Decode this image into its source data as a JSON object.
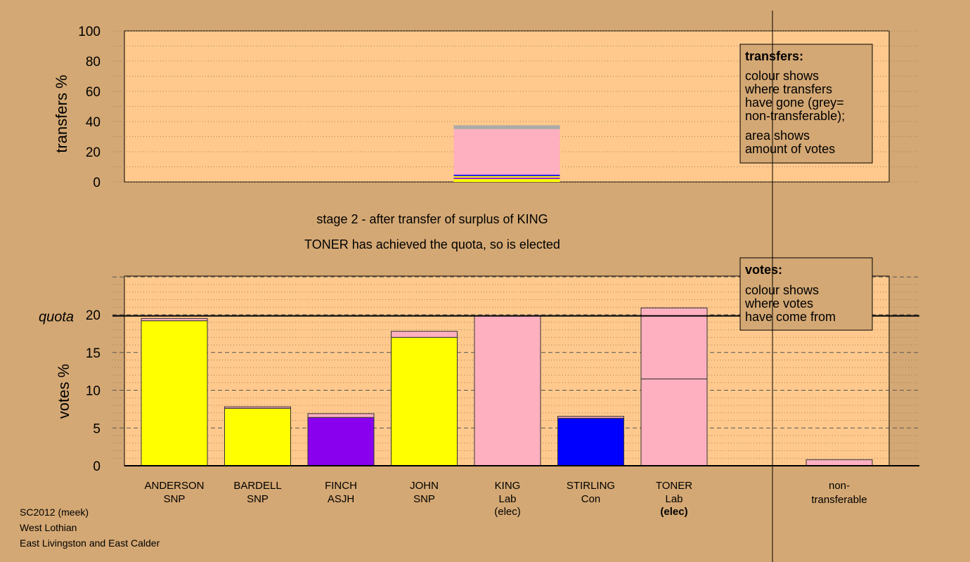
{
  "colors": {
    "background": "#d4a874",
    "plot_bg": "#ffc98d",
    "SNP": "#ffff00",
    "ASJH": "#8800ee",
    "Lab": "#ffb0c0",
    "Con": "#0000ff",
    "nontransferable": "#aaaaaa"
  },
  "caption": {
    "line1": "stage 2 - after transfer of surplus of KING",
    "line2": "TONER has achieved the quota, so is elected"
  },
  "footer": {
    "line1": "SC2012 (meek)",
    "line2": "West Lothian",
    "line3": "East Livingston and East Calder"
  },
  "transfers_legend": {
    "title": "transfers:",
    "lines": [
      "colour shows",
      "where transfers",
      "have gone (grey=",
      "non-transferable);",
      "area shows",
      "amount of votes"
    ]
  },
  "votes_legend": {
    "title": "votes:",
    "lines": [
      "colour shows",
      "where votes",
      "have come from"
    ]
  },
  "chart_data": [
    {
      "type": "bar",
      "ylabel": "transfers %",
      "ylim": [
        0,
        100
      ],
      "yticks": [
        0,
        20,
        40,
        60,
        80,
        100
      ],
      "bar_under": "KING",
      "segments": [
        {
          "to": "ANDERSON",
          "party": "SNP",
          "value": 1.2
        },
        {
          "to": "BARDELL",
          "party": "SNP",
          "value": 0.8
        },
        {
          "to": "FINCH",
          "party": "ASJH",
          "value": 0.9
        },
        {
          "to": "JOHN",
          "party": "SNP",
          "value": 1.0
        },
        {
          "to": "STIRLING",
          "party": "Con",
          "value": 0.9
        },
        {
          "to": "TONER",
          "party": "Lab",
          "value": 30.2
        },
        {
          "to": "non-transferable",
          "party": "nontransferable",
          "value": 2.5
        }
      ]
    },
    {
      "type": "bar",
      "ylabel": "votes %",
      "ylim": [
        0,
        25
      ],
      "yticks": [
        0,
        5,
        10,
        15,
        20
      ],
      "quota": 19.85,
      "quota_label": "quota",
      "candidates": [
        {
          "name": "ANDERSON",
          "party": "SNP",
          "elected": "",
          "segments": [
            {
              "party": "SNP",
              "value": 19.2
            },
            {
              "party": "Lab",
              "value": 0.3
            }
          ]
        },
        {
          "name": "BARDELL",
          "party": "SNP",
          "elected": "",
          "segments": [
            {
              "party": "SNP",
              "value": 7.6
            },
            {
              "party": "Lab",
              "value": 0.2
            }
          ]
        },
        {
          "name": "FINCH",
          "party": "ASJH",
          "elected": "",
          "segments": [
            {
              "party": "ASJH",
              "value": 6.4
            },
            {
              "party": "Lab",
              "value": 0.5
            }
          ]
        },
        {
          "name": "JOHN",
          "party": "SNP",
          "elected": "",
          "segments": [
            {
              "party": "SNP",
              "value": 17.0
            },
            {
              "party": "Lab",
              "value": 0.8
            }
          ]
        },
        {
          "name": "KING",
          "party": "Lab",
          "elected": "(elec)",
          "segments": [
            {
              "party": "Lab",
              "value": 19.85
            }
          ]
        },
        {
          "name": "STIRLING",
          "party": "Con",
          "elected": "",
          "segments": [
            {
              "party": "Con",
              "value": 6.3
            },
            {
              "party": "Lab",
              "value": 0.25
            }
          ]
        },
        {
          "name": "TONER",
          "party": "Lab",
          "elected": "(elec)",
          "segments": [
            {
              "party": "Lab",
              "value": 11.5
            },
            {
              "party": "Lab",
              "value": 9.4
            }
          ]
        }
      ],
      "nontransferable": {
        "label1": "non-",
        "label2": "transferable",
        "segments": [
          {
            "party": "Lab",
            "value": 0.8
          }
        ]
      }
    }
  ]
}
